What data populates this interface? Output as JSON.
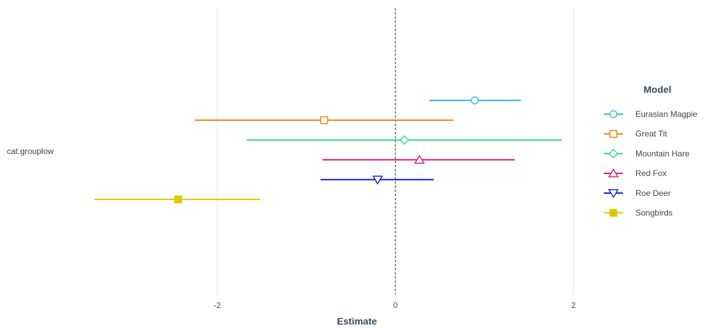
{
  "chart_data": {
    "type": "forest",
    "xlabel": "Estimate",
    "ylabel": "",
    "xlim": [
      -3.45,
      2.45
    ],
    "x_ticks": [
      -2,
      0,
      2
    ],
    "x_tick_labels": [
      "-2",
      "0",
      "2"
    ],
    "reference_line": 0,
    "term": "cat.grouplow",
    "grid": true,
    "legend_title": "Model",
    "legend_position": "right",
    "series": [
      {
        "name": "Eurasian Magpie",
        "estimate": 0.89,
        "ci_low": 0.38,
        "ci_high": 1.41,
        "color": "#3db6e6",
        "marker": "circle-open"
      },
      {
        "name": "Great Tit",
        "estimate": -0.8,
        "ci_low": -2.25,
        "ci_high": 0.65,
        "color": "#f07f11",
        "marker": "square-open"
      },
      {
        "name": "Mountain Hare",
        "estimate": 0.1,
        "ci_low": -1.67,
        "ci_high": 1.87,
        "color": "#2bd49b",
        "marker": "diamond-open"
      },
      {
        "name": "Red Fox",
        "estimate": 0.27,
        "ci_low": -0.82,
        "ci_high": 1.34,
        "color": "#e5126f",
        "marker": "triangle-up-open"
      },
      {
        "name": "Roe Deer",
        "estimate": -0.2,
        "ci_low": -0.84,
        "ci_high": 0.43,
        "color": "#0a1fcf",
        "marker": "triangle-down-open"
      },
      {
        "name": "Songbirds",
        "estimate": -2.44,
        "ci_low": -3.38,
        "ci_high": -1.52,
        "color": "#e2c700",
        "marker": "square-filled"
      }
    ]
  }
}
